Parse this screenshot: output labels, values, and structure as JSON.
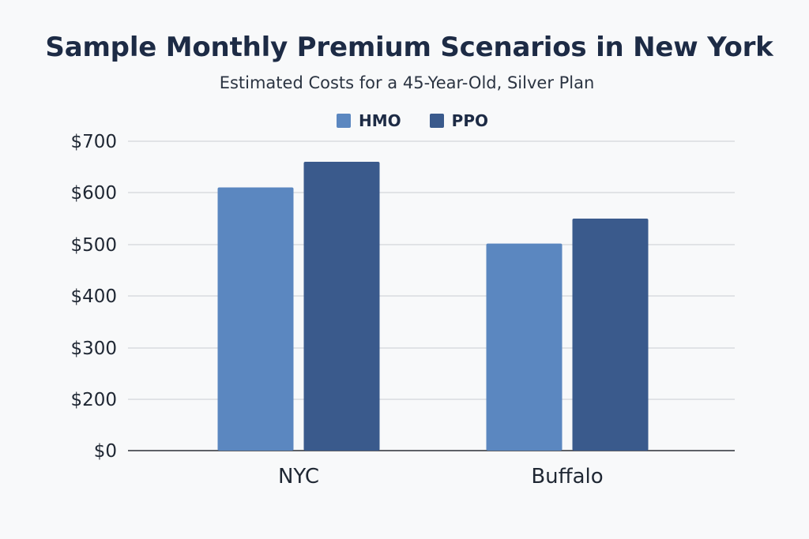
{
  "chart_data": {
    "type": "bar",
    "title": "Sample Monthly Premium Scenarios in New York",
    "subtitle": "Estimated Costs for a 45-Year-Old, Silver Plan",
    "categories": [
      "NYC",
      "Buffalo"
    ],
    "series": [
      {
        "name": "HMO",
        "values": [
          610,
          502
        ],
        "color": "#5b87c0"
      },
      {
        "name": "PPO",
        "values": [
          660,
          550
        ],
        "color": "#3a5a8c"
      }
    ],
    "yticks": [
      "$0",
      "$200",
      "$300",
      "$400",
      "$500",
      "$600",
      "$700"
    ],
    "ytick_values": [
      0,
      200,
      300,
      400,
      500,
      600,
      700
    ],
    "ylim": [
      0,
      700
    ],
    "grid": true,
    "legend_position": "top-center",
    "xlabel": "",
    "ylabel": ""
  }
}
